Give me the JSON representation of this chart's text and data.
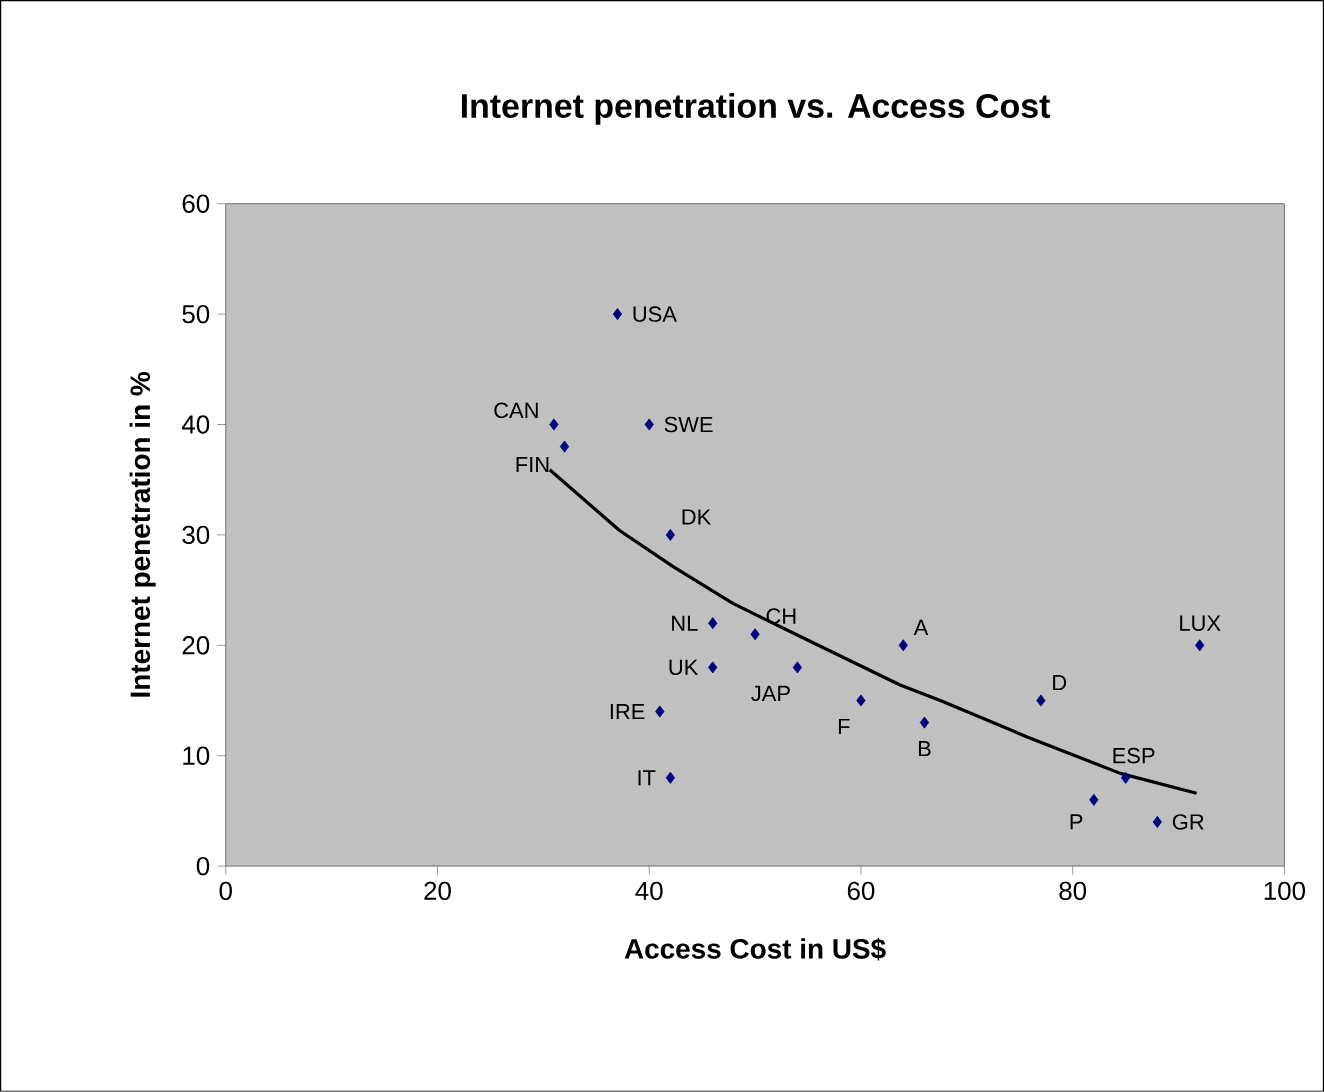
{
  "chart_data": {
    "type": "scatter",
    "title": "Internet penetration vs. Access Cost",
    "xlabel": "Access Cost in US$",
    "ylabel": "Internet penetration in %",
    "xlim": [
      0,
      100
    ],
    "xticks": [
      0,
      20,
      40,
      60,
      80,
      100
    ],
    "ylim": [
      0,
      60
    ],
    "yticks": [
      0,
      10,
      20,
      30,
      40,
      50,
      60
    ],
    "grid": false,
    "marker": "diamond",
    "series": [
      {
        "color": "#000080",
        "x": [
          37,
          31,
          32,
          40,
          42,
          46,
          50,
          46,
          54,
          64,
          41,
          60,
          66,
          42,
          77,
          92,
          85,
          82,
          88
        ],
        "values": [
          50,
          40,
          38,
          40,
          30,
          22,
          21,
          18,
          18,
          20,
          14,
          15,
          13,
          8,
          15,
          20,
          8,
          6,
          4
        ]
      },
      {
        "type": "line",
        "color": "#000000",
        "line_style": "solid",
        "marker": "none",
        "x": [
          30.6,
          37.2,
          42.3,
          47.9,
          54.9,
          63.7,
          67.5,
          75.7,
          84.5,
          91.7
        ],
        "values": [
          35.9,
          30.4,
          27.1,
          23.8,
          20.5,
          16.4,
          15.0,
          11.7,
          8.4,
          6.6
        ]
      }
    ],
    "annotations": [
      {
        "text": "USA",
        "x": 37,
        "y": 50
      },
      {
        "text": "CAN",
        "x": 31,
        "y": 40
      },
      {
        "text": "FIN",
        "x": 32,
        "y": 38
      },
      {
        "text": "SWE",
        "x": 40,
        "y": 40
      },
      {
        "text": "DK",
        "x": 42,
        "y": 30
      },
      {
        "text": "NL",
        "x": 46,
        "y": 22
      },
      {
        "text": "CH",
        "x": 50,
        "y": 21
      },
      {
        "text": "UK",
        "x": 46,
        "y": 18
      },
      {
        "text": "JAP",
        "x": 54,
        "y": 18
      },
      {
        "text": "A",
        "x": 64,
        "y": 20
      },
      {
        "text": "IRE",
        "x": 41,
        "y": 14
      },
      {
        "text": "F",
        "x": 60,
        "y": 15
      },
      {
        "text": "B",
        "x": 66,
        "y": 13
      },
      {
        "text": "IT",
        "x": 42,
        "y": 8
      },
      {
        "text": "D",
        "x": 77,
        "y": 15
      },
      {
        "text": "LUX",
        "x": 92,
        "y": 20
      },
      {
        "text": "ESP",
        "x": 85,
        "y": 8
      },
      {
        "text": "P",
        "x": 82,
        "y": 6
      },
      {
        "text": "GR",
        "x": 88,
        "y": 4
      }
    ]
  }
}
